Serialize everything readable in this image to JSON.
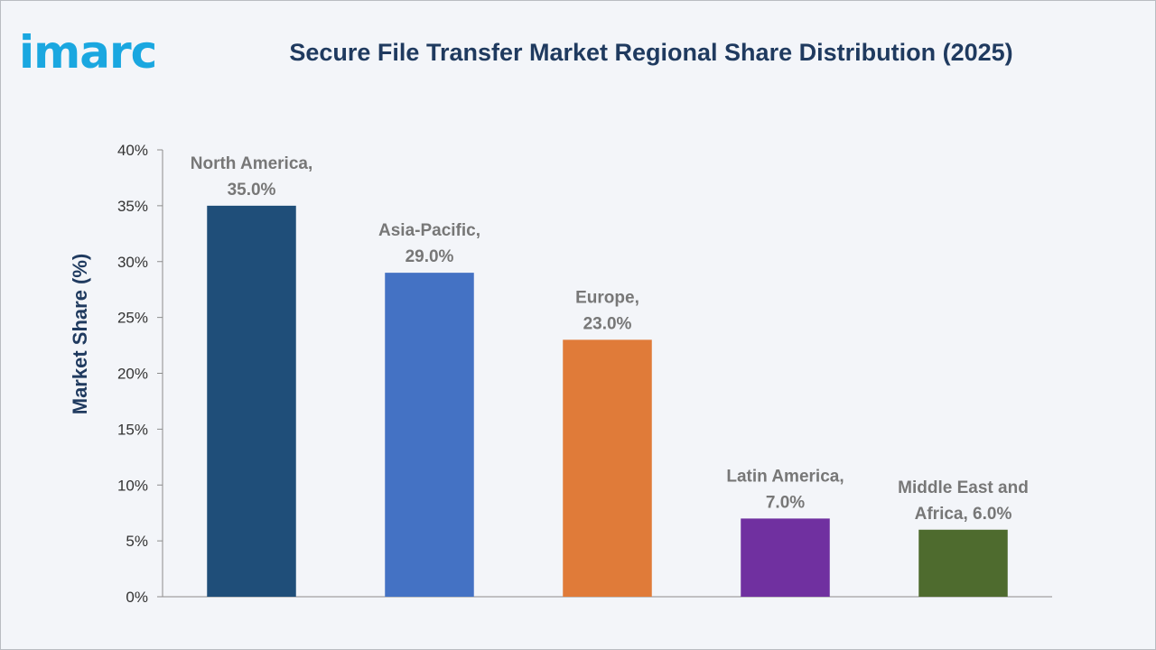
{
  "logo": {
    "text": "imarc"
  },
  "header": {
    "title": "Secure File Transfer Market Regional Share Distribution (2025)"
  },
  "chart_data": {
    "type": "bar",
    "title": "Secure File Transfer Market Regional Share Distribution (2025)",
    "xlabel": "",
    "ylabel": "Market Share (%)",
    "ylim": [
      0,
      40
    ],
    "yticks": [
      "0%",
      "5%",
      "10%",
      "15%",
      "20%",
      "25%",
      "30%",
      "35%",
      "40%"
    ],
    "categories": [
      "North America",
      "Asia-Pacific",
      "Europe",
      "Latin America",
      "Middle East and Africa"
    ],
    "values": [
      35.0,
      29.0,
      23.0,
      7.0,
      6.0
    ],
    "data_labels": [
      [
        "North America,",
        "35.0%"
      ],
      [
        "Asia-Pacific,",
        "29.0%"
      ],
      [
        "Europe,",
        "23.0%"
      ],
      [
        "Latin America,",
        "7.0%"
      ],
      [
        "Middle East and",
        "Africa, 6.0%"
      ]
    ],
    "colors": [
      "#1f4e79",
      "#4472c4",
      "#e07b39",
      "#7030a0",
      "#4e6b2e"
    ],
    "grid": false,
    "legend": "none"
  }
}
